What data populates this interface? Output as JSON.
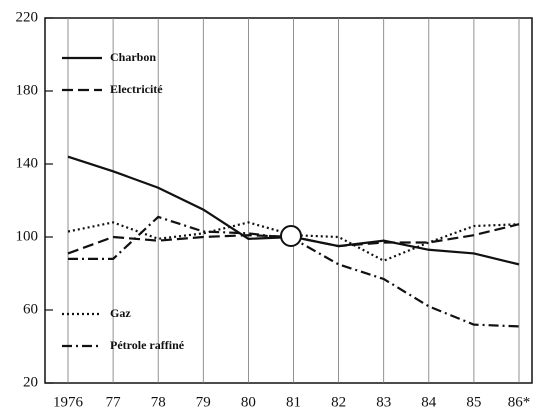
{
  "chart_data": {
    "type": "line",
    "categories": [
      "1976",
      "77",
      "78",
      "79",
      "80",
      "81",
      "82",
      "83",
      "84",
      "85",
      "86*"
    ],
    "ylim": [
      20,
      220
    ],
    "yticks": [
      20,
      60,
      100,
      140,
      180,
      220
    ],
    "grid": true,
    "series": [
      {
        "name": "Charbon",
        "color": "#111111",
        "style": "solid",
        "values": [
          144,
          136,
          127,
          115,
          99,
          100,
          95,
          98,
          93,
          91,
          85
        ]
      },
      {
        "name": "Electricité",
        "color": "#111111",
        "style": "dashed",
        "values": [
          91,
          100,
          98,
          100,
          101,
          100,
          95,
          97,
          97,
          101,
          107
        ]
      },
      {
        "name": "Gaz",
        "color": "#111111",
        "style": "dotted",
        "values": [
          103,
          108,
          99,
          102,
          108,
          101,
          100,
          87,
          97,
          106,
          107
        ]
      },
      {
        "name": "Pétrole raffiné",
        "color": "#111111",
        "style": "dashdot",
        "values": [
          88,
          88,
          111,
          103,
          102,
          99,
          85,
          77,
          62,
          52,
          51
        ]
      }
    ]
  }
}
